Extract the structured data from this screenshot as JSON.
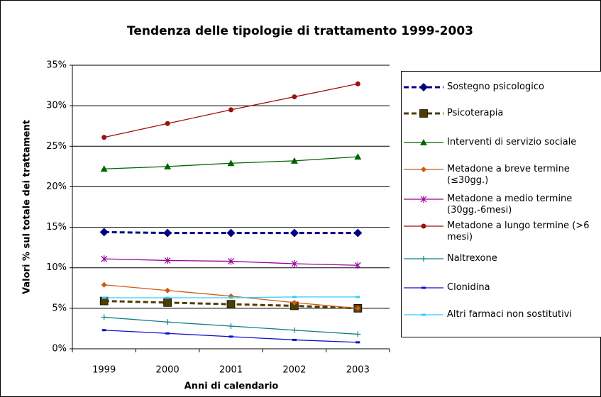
{
  "chart_data": {
    "type": "line",
    "title": "Tendenza delle tipologie di trattamento 1999-2003",
    "x_label": "Anni di calendario",
    "y_label": "Valori % sul totale dei trattament",
    "categories": [
      "1999",
      "2000",
      "2001",
      "2002",
      "2003"
    ],
    "ylim": [
      0,
      35
    ],
    "yticks": [
      {
        "value": 0,
        "label": "0%"
      },
      {
        "value": 5,
        "label": "5%"
      },
      {
        "value": 10,
        "label": "10%"
      },
      {
        "value": 15,
        "label": "15%"
      },
      {
        "value": 20,
        "label": "20%"
      },
      {
        "value": 25,
        "label": "25%"
      },
      {
        "value": 30,
        "label": "30%"
      },
      {
        "value": 35,
        "label": "35%"
      }
    ],
    "grid": true,
    "legend": "right",
    "series": [
      {
        "name": "Sostegno psicologico",
        "color": "#000080",
        "marker": "diamond",
        "dash": true,
        "values": [
          14.4,
          14.3,
          14.3,
          14.3,
          14.3
        ]
      },
      {
        "name": "Psicoterapia",
        "color": "#4d3d00",
        "marker": "square",
        "dash": true,
        "values": [
          5.9,
          5.7,
          5.5,
          5.3,
          5.0
        ]
      },
      {
        "name": "Interventi di servizio sociale",
        "color": "#006400",
        "marker": "triangle",
        "dash": false,
        "values": [
          22.2,
          22.5,
          22.9,
          23.2,
          23.7
        ]
      },
      {
        "name": "Metadone a breve termine (≤30gg.)",
        "color": "#cc5a10",
        "marker": "small-diamond",
        "dash": false,
        "values": [
          7.9,
          7.2,
          6.5,
          5.7,
          5.0
        ]
      },
      {
        "name": "Metadone a medio termine (30gg.-6mesi)",
        "color": "#990099",
        "marker": "star",
        "dash": false,
        "values": [
          11.1,
          10.9,
          10.8,
          10.5,
          10.3
        ]
      },
      {
        "name": "Metadone a lungo termine (>6 mesi)",
        "color": "#9b1010",
        "marker": "circle",
        "dash": false,
        "values": [
          26.1,
          27.8,
          29.5,
          31.1,
          32.7
        ]
      },
      {
        "name": "Naltrexone",
        "color": "#108080",
        "marker": "plus",
        "dash": false,
        "values": [
          3.9,
          3.3,
          2.8,
          2.3,
          1.8
        ]
      },
      {
        "name": "Clonidina",
        "color": "#1010cc",
        "marker": "dash",
        "dash": false,
        "values": [
          2.3,
          1.9,
          1.5,
          1.1,
          0.8
        ]
      },
      {
        "name": "Altri farmaci non sostitutivi",
        "color": "#33ccff",
        "marker": "dash",
        "dash": false,
        "values": [
          6.3,
          6.3,
          6.3,
          6.4,
          6.4
        ]
      }
    ]
  }
}
